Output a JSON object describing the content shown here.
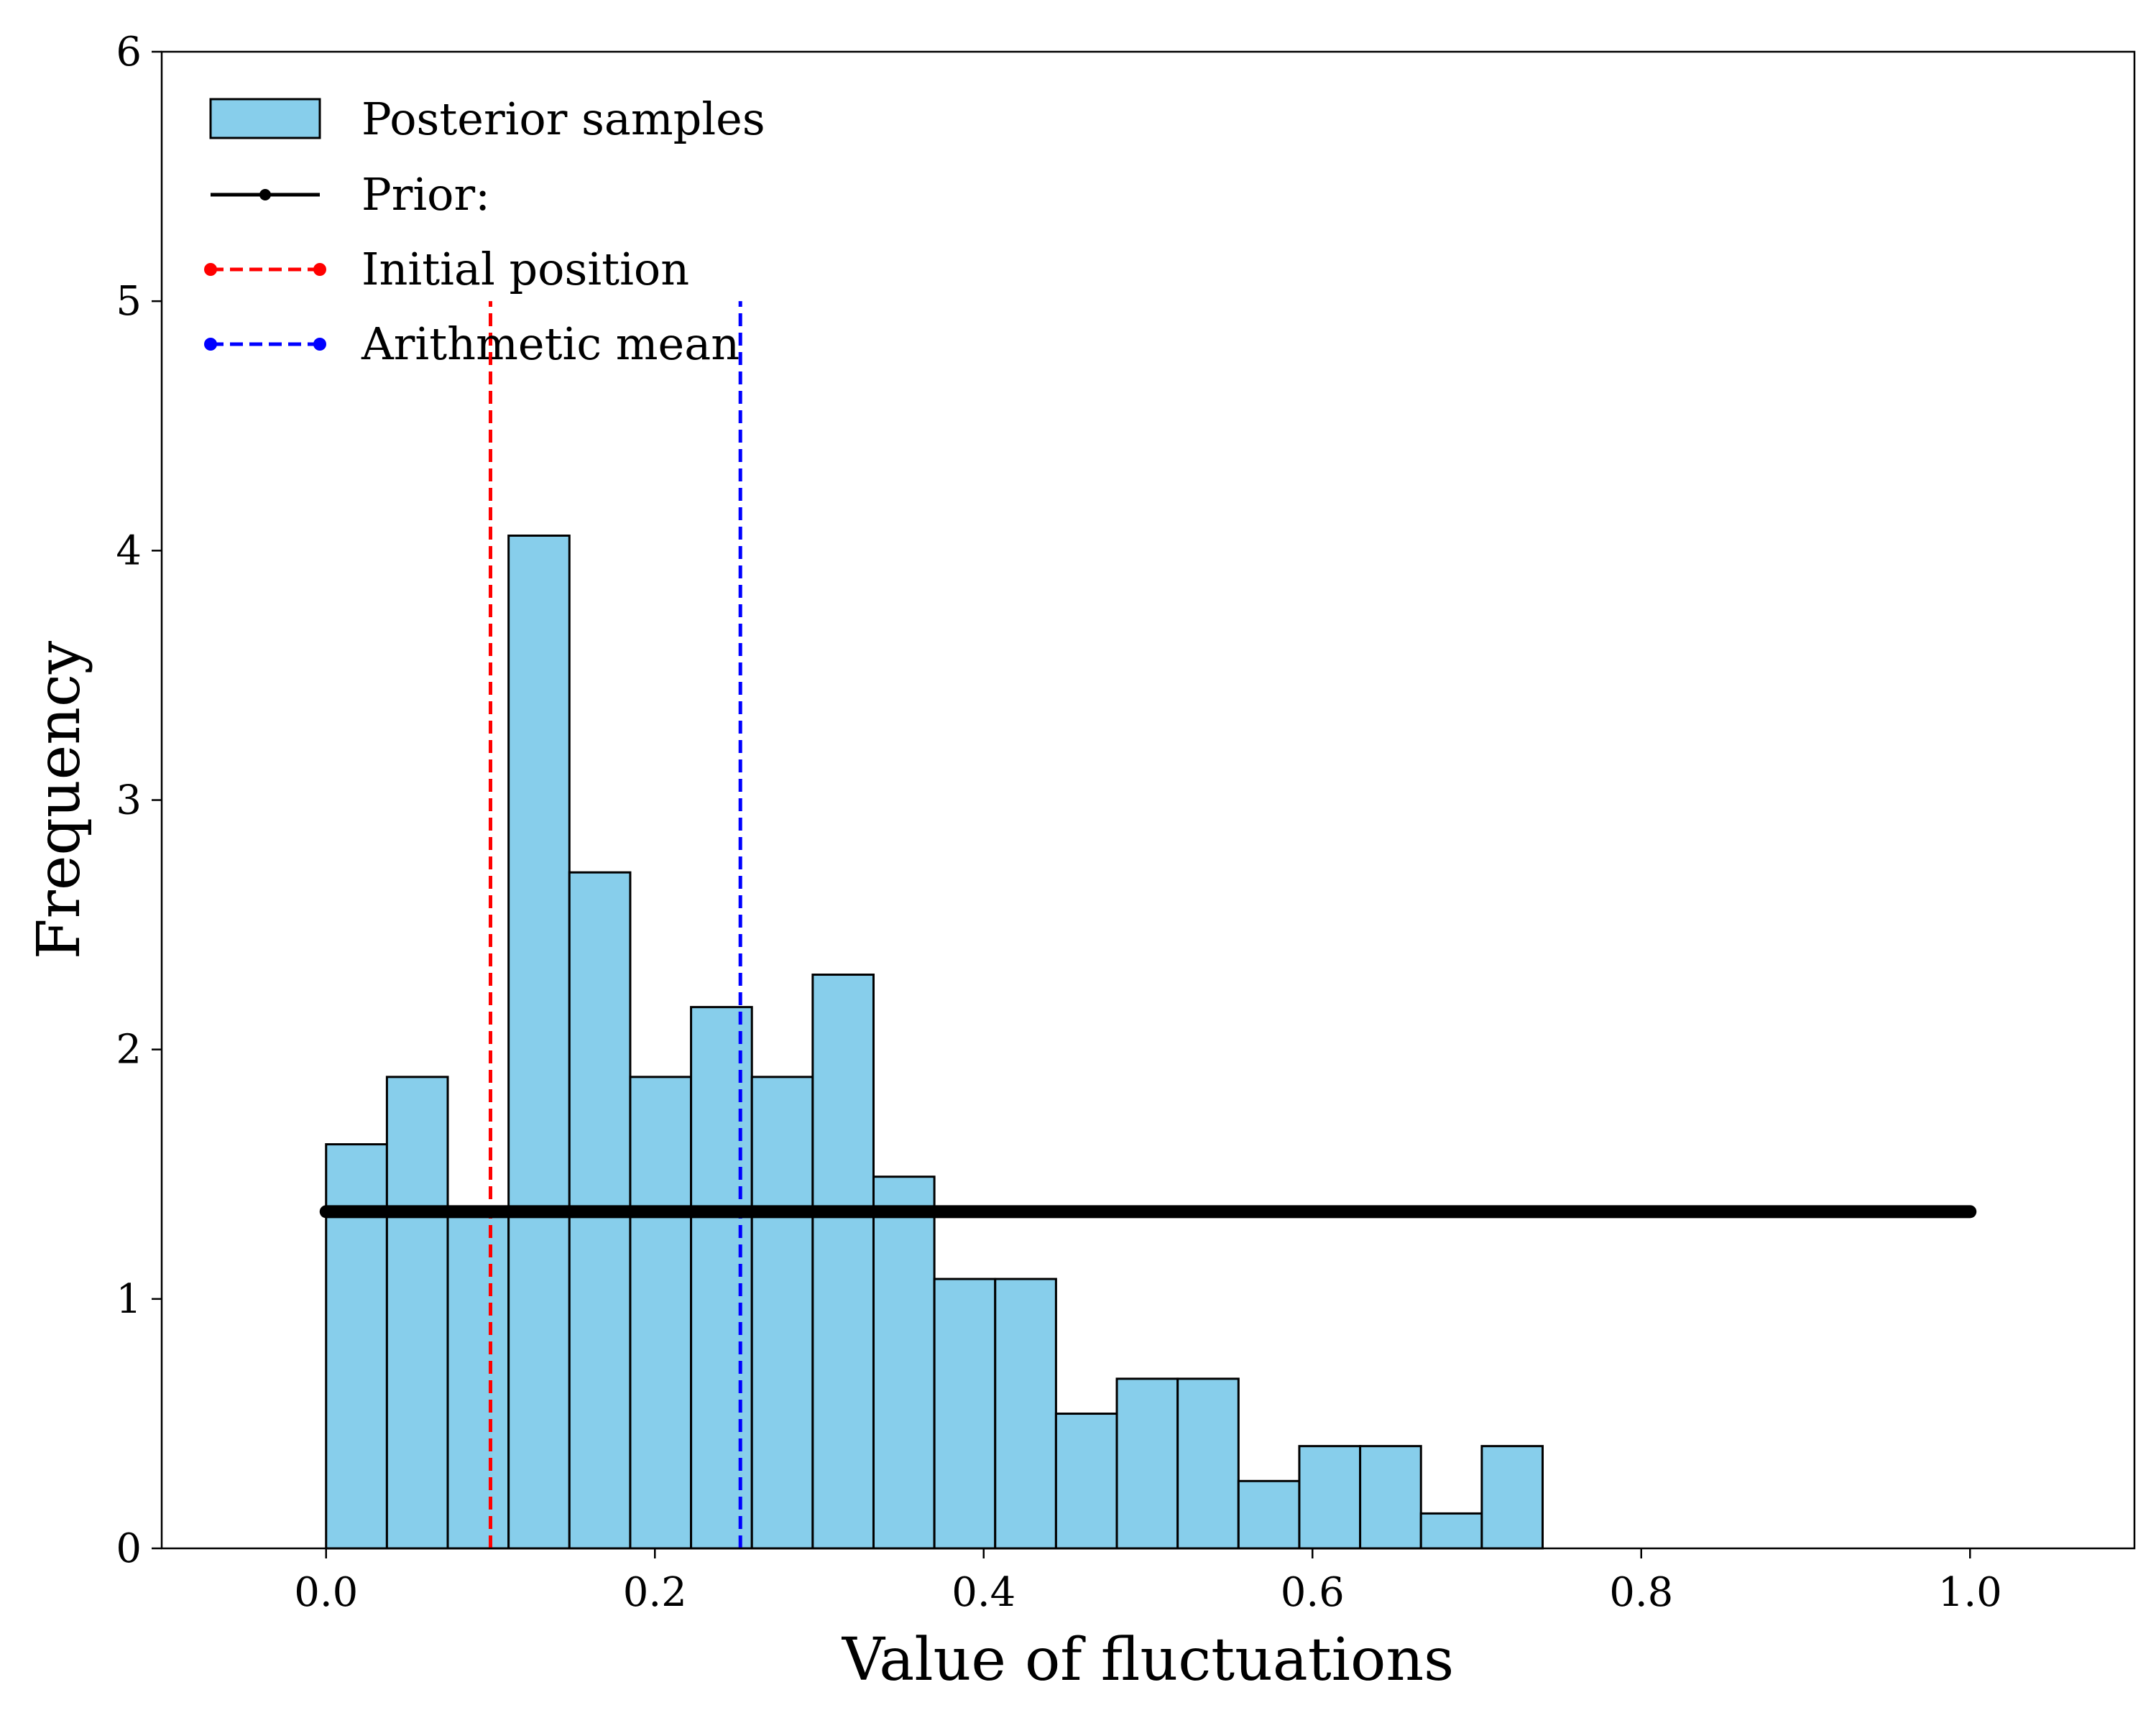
{
  "chart_data": {
    "type": "bar",
    "xlabel": "Value of fluctuations",
    "ylabel": "Frequency",
    "xlim": [
      -0.1,
      1.1
    ],
    "ylim": [
      0,
      6
    ],
    "xticks": [
      0.0,
      0.2,
      0.4,
      0.6,
      0.8,
      1.0
    ],
    "xtick_labels": [
      "0.0",
      "0.2",
      "0.4",
      "0.6",
      "0.8",
      "1.0"
    ],
    "yticks": [
      0,
      1,
      2,
      3,
      4,
      5,
      6
    ],
    "ytick_labels": [
      "0",
      "1",
      "2",
      "3",
      "4",
      "5",
      "6"
    ],
    "grid": false,
    "legend_position": "top-left",
    "histogram": {
      "name": "Posterior samples",
      "color": "#87CEEB",
      "edge_color": "#000000",
      "bin_edges": [
        0.0,
        0.037,
        0.074,
        0.111,
        0.148,
        0.185,
        0.222,
        0.259,
        0.296,
        0.333,
        0.37,
        0.407,
        0.444,
        0.481,
        0.518,
        0.555,
        0.592,
        0.629,
        0.666,
        0.703,
        0.74
      ],
      "values": [
        1.62,
        1.89,
        1.35,
        4.06,
        2.71,
        1.89,
        2.17,
        1.89,
        2.3,
        1.49,
        1.08,
        1.08,
        0.54,
        0.68,
        0.68,
        0.27,
        0.41,
        0.41,
        0.14,
        0.41
      ]
    },
    "prior": {
      "name": "Prior:",
      "color": "#000000",
      "x": [
        0.0,
        1.0
      ],
      "y": 1.35
    },
    "vertical_lines": [
      {
        "name": "Initial position",
        "x": 0.1,
        "y_range": [
          0,
          5
        ],
        "color": "#FF0000",
        "style": "dashed"
      },
      {
        "name": "Arithmetic mean",
        "x": 0.252,
        "y_range": [
          0,
          5
        ],
        "color": "#0000FF",
        "style": "dashed"
      }
    ]
  }
}
